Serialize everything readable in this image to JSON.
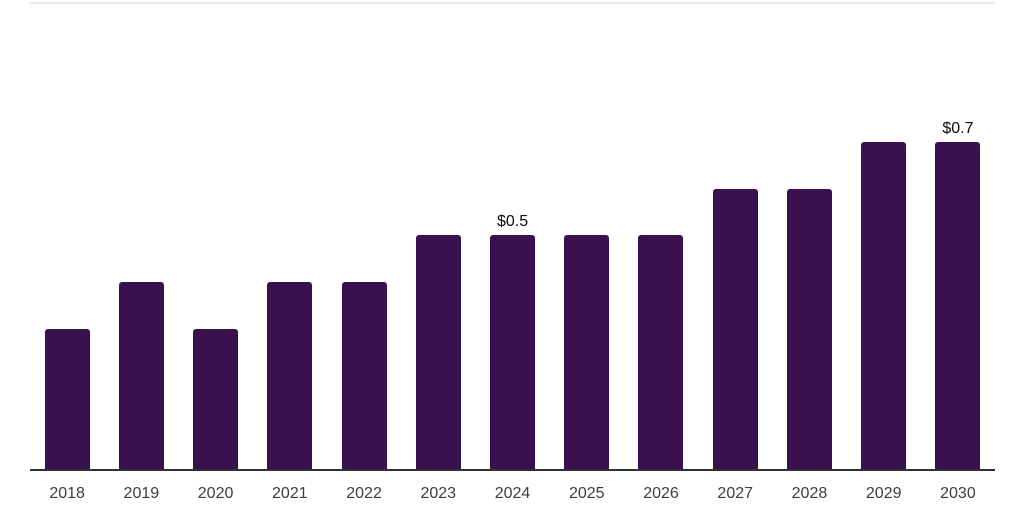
{
  "chart_data": {
    "type": "bar",
    "categories": [
      "2018",
      "2019",
      "2020",
      "2021",
      "2022",
      "2023",
      "2024",
      "2025",
      "2026",
      "2027",
      "2028",
      "2029",
      "2030"
    ],
    "values": [
      0.3,
      0.4,
      0.3,
      0.4,
      0.4,
      0.5,
      0.5,
      0.5,
      0.5,
      0.6,
      0.6,
      0.7,
      0.7
    ],
    "data_labels": [
      "",
      "",
      "",
      "",
      "",
      "",
      "$0.5",
      "",
      "",
      "",
      "",
      "",
      "$0.7"
    ],
    "title": "",
    "xlabel": "",
    "ylabel": "",
    "ylim": [
      0,
      0.75
    ],
    "grid": "off",
    "legend": "none",
    "colors": {
      "bar": "#38114e",
      "axis_line": "#323232",
      "top_border": "#ebebeb",
      "tick_label": "#3d3d3d",
      "data_label": "#0a0a0a",
      "background": "#ffffff"
    }
  }
}
